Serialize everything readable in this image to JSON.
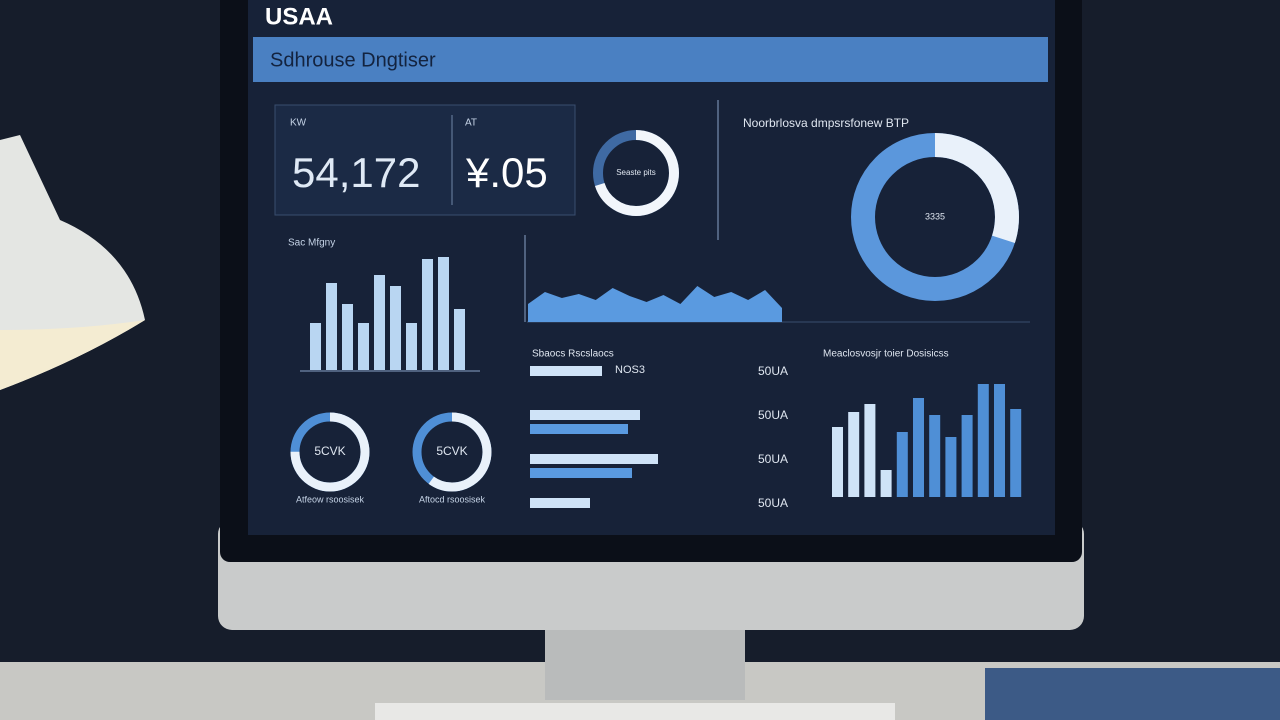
{
  "header": {
    "logo": "USAA",
    "title": "Sdhrouse Dngtiser"
  },
  "kpis": [
    {
      "label": "KW",
      "value": "54,172"
    },
    {
      "label": "AT",
      "value": "¥.05"
    }
  ],
  "kpi_donut": {
    "label": "Seaste pits",
    "percent": 70
  },
  "big_donut": {
    "title": "Noorbrlosva dmpsrsfonew BTP",
    "center": "3335",
    "percent": 30
  },
  "left_bars": {
    "title": "Sac Mfgny",
    "values": [
      47,
      87,
      66,
      47,
      95,
      84,
      47,
      111,
      113,
      61
    ]
  },
  "area": {
    "values": [
      18,
      30,
      24,
      28,
      22,
      34,
      26,
      20,
      27,
      18,
      36,
      25,
      30,
      22,
      32,
      14
    ]
  },
  "small_donuts": [
    {
      "center": "5CVK",
      "caption": "Atfeow rsoosisek",
      "percent": 75
    },
    {
      "center": "5CVK",
      "caption": "Aftocd rsoosisek",
      "percent": 60
    }
  ],
  "hbars": {
    "title": "Sbaocs Rscslaocs",
    "tag": "NOS3",
    "rows": [
      {
        "right": "50UA",
        "bars": [
          72
        ]
      },
      {
        "right": "50UA",
        "bars": [
          110,
          98
        ]
      },
      {
        "right": "50UA",
        "bars": [
          128,
          102
        ]
      },
      {
        "right": "50UA",
        "bars": [
          60
        ]
      }
    ]
  },
  "right_bars": {
    "title": "Meaclosvosjr toier Dosisicss",
    "values": [
      70,
      85,
      93,
      27,
      65,
      99,
      82,
      60,
      82,
      113,
      113,
      88
    ],
    "colors": [
      "#cfe3f7",
      "#cfe3f7",
      "#cfe3f7",
      "#cfe3f7",
      "#4f8fd6",
      "#4f8fd6",
      "#4f8fd6",
      "#4f8fd6",
      "#4f8fd6",
      "#4f8fd6",
      "#4f8fd6",
      "#4f8fd6"
    ]
  }
}
